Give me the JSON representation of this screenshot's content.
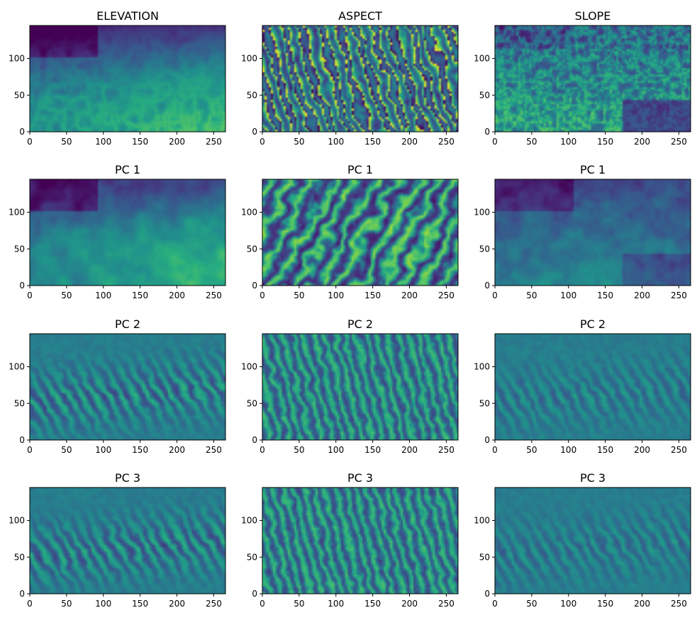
{
  "figure": {
    "rows": 4,
    "cols": 3,
    "background": "#ffffff",
    "colormap": "viridis",
    "colormap_stops": [
      "#440154",
      "#472d7b",
      "#3b528b",
      "#2c728e",
      "#21918c",
      "#28ae80",
      "#5ec962",
      "#addc30",
      "#fde725"
    ]
  },
  "chart_data": [
    {
      "type": "heatmap",
      "title": "ELEVATION",
      "texture": "elevation",
      "seed": 11,
      "xlim": [
        0,
        266
      ],
      "ylim": [
        0,
        145
      ],
      "xticks": [
        0,
        50,
        100,
        150,
        200,
        250
      ],
      "yticks": [
        0,
        50,
        100
      ],
      "origin": "lower"
    },
    {
      "type": "heatmap",
      "title": "ASPECT",
      "texture": "aspect",
      "seed": 23,
      "xlim": [
        0,
        266
      ],
      "ylim": [
        0,
        145
      ],
      "xticks": [
        0,
        50,
        100,
        150,
        200,
        250
      ],
      "yticks": [
        0,
        50,
        100
      ],
      "origin": "lower"
    },
    {
      "type": "heatmap",
      "title": "SLOPE",
      "texture": "slope",
      "seed": 37,
      "xlim": [
        0,
        266
      ],
      "ylim": [
        0,
        145
      ],
      "xticks": [
        0,
        50,
        100,
        150,
        200,
        250
      ],
      "yticks": [
        0,
        50,
        100
      ],
      "origin": "lower"
    },
    {
      "type": "heatmap",
      "title": "PC 1",
      "texture": "pc1_elev",
      "seed": 41,
      "xlim": [
        0,
        266
      ],
      "ylim": [
        0,
        145
      ],
      "xticks": [
        0,
        50,
        100,
        150,
        200,
        250
      ],
      "yticks": [
        0,
        50,
        100
      ],
      "origin": "lower"
    },
    {
      "type": "heatmap",
      "title": "PC 1",
      "texture": "pc1_aspect",
      "seed": 53,
      "xlim": [
        0,
        266
      ],
      "ylim": [
        0,
        145
      ],
      "xticks": [
        0,
        50,
        100,
        150,
        200,
        250
      ],
      "yticks": [
        0,
        50,
        100
      ],
      "origin": "lower"
    },
    {
      "type": "heatmap",
      "title": "PC 1",
      "texture": "pc1_slope",
      "seed": 67,
      "xlim": [
        0,
        266
      ],
      "ylim": [
        0,
        145
      ],
      "xticks": [
        0,
        50,
        100,
        150,
        200,
        250
      ],
      "yticks": [
        0,
        50,
        100
      ],
      "origin": "lower"
    },
    {
      "type": "heatmap",
      "title": "PC 2",
      "texture": "pc2_elev",
      "seed": 71,
      "xlim": [
        0,
        266
      ],
      "ylim": [
        0,
        145
      ],
      "xticks": [
        0,
        50,
        100,
        150,
        200,
        250
      ],
      "yticks": [
        0,
        50,
        100
      ],
      "origin": "lower"
    },
    {
      "type": "heatmap",
      "title": "PC 2",
      "texture": "pc2_aspect",
      "seed": 83,
      "xlim": [
        0,
        266
      ],
      "ylim": [
        0,
        145
      ],
      "xticks": [
        0,
        50,
        100,
        150,
        200,
        250
      ],
      "yticks": [
        0,
        50,
        100
      ],
      "origin": "lower"
    },
    {
      "type": "heatmap",
      "title": "PC 2",
      "texture": "pc2_slope",
      "seed": 97,
      "xlim": [
        0,
        266
      ],
      "ylim": [
        0,
        145
      ],
      "xticks": [
        0,
        50,
        100,
        150,
        200,
        250
      ],
      "yticks": [
        0,
        50,
        100
      ],
      "origin": "lower"
    },
    {
      "type": "heatmap",
      "title": "PC 3",
      "texture": "pc3_elev",
      "seed": 101,
      "xlim": [
        0,
        266
      ],
      "ylim": [
        0,
        145
      ],
      "xticks": [
        0,
        50,
        100,
        150,
        200,
        250
      ],
      "yticks": [
        0,
        50,
        100
      ],
      "origin": "lower"
    },
    {
      "type": "heatmap",
      "title": "PC 3",
      "texture": "pc3_aspect",
      "seed": 113,
      "xlim": [
        0,
        266
      ],
      "ylim": [
        0,
        145
      ],
      "xticks": [
        0,
        50,
        100,
        150,
        200,
        250
      ],
      "yticks": [
        0,
        50,
        100
      ],
      "origin": "lower"
    },
    {
      "type": "heatmap",
      "title": "PC 3",
      "texture": "pc3_slope",
      "seed": 127,
      "xlim": [
        0,
        266
      ],
      "ylim": [
        0,
        145
      ],
      "xticks": [
        0,
        50,
        100,
        150,
        200,
        250
      ],
      "yticks": [
        0,
        50,
        100
      ],
      "origin": "lower"
    }
  ]
}
